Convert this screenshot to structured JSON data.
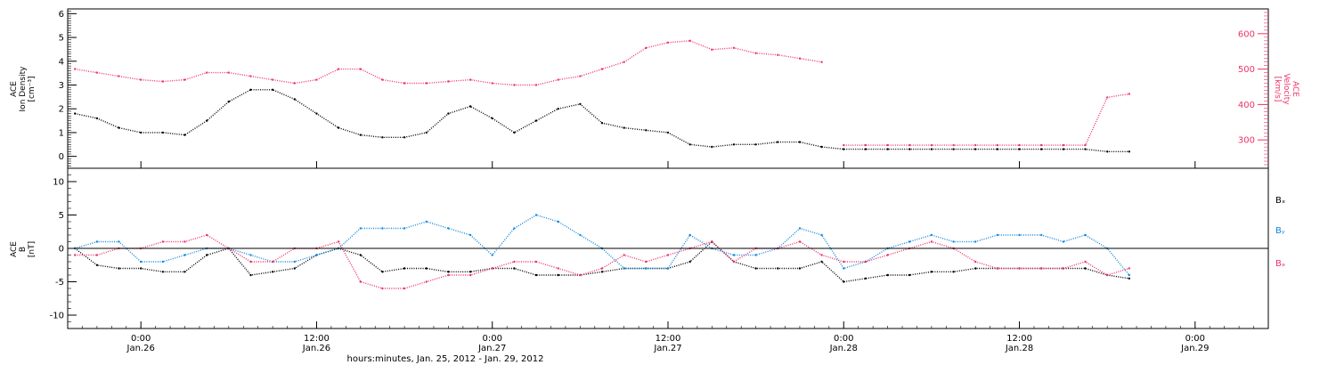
{
  "colors": {
    "density": "#000000",
    "velocity": "#ee3366",
    "bx": "#000000",
    "by": "#1188dd",
    "bz": "#ee3366"
  },
  "x_axis": {
    "label": "hours:minutes, Jan. 25, 2012 - Jan. 29, 2012",
    "range_hours": [
      -5,
      77
    ],
    "ticks": [
      {
        "hour": 0,
        "time": "0:00",
        "date": "Jan.26"
      },
      {
        "hour": 12,
        "time": "12:00",
        "date": "Jan.26"
      },
      {
        "hour": 24,
        "time": "0:00",
        "date": "Jan.27"
      },
      {
        "hour": 36,
        "time": "12:00",
        "date": "Jan.27"
      },
      {
        "hour": 48,
        "time": "0:00",
        "date": "Jan.28"
      },
      {
        "hour": 60,
        "time": "12:00",
        "date": "Jan.28"
      },
      {
        "hour": 72,
        "time": "0:00",
        "date": "Jan.29"
      }
    ]
  },
  "chart_data": [
    {
      "type": "scatter",
      "title": "",
      "ylabel_left": [
        "ACE",
        "Ion Density",
        "[cm⁻³]"
      ],
      "ylabel_right": [
        "ACE",
        "Velocity",
        "[km/s]"
      ],
      "ylim_left": [
        -0.5,
        6.2
      ],
      "ylim_right": [
        220,
        670
      ],
      "left_ticks": [
        0,
        1,
        2,
        3,
        4,
        5,
        6
      ],
      "right_ticks": [
        300,
        400,
        500,
        600
      ],
      "series": [
        {
          "key": "density",
          "axis": "left",
          "x": [
            -4.5,
            -3,
            -1.5,
            0,
            1.5,
            3,
            4.5,
            6,
            7.5,
            9,
            10.5,
            12,
            13.5,
            15,
            16.5,
            18,
            19.5,
            21,
            22.5,
            24,
            25.5,
            27,
            28.5,
            30,
            31.5,
            33,
            34.5,
            36,
            37.5,
            39,
            40.5,
            42,
            43.5,
            45,
            46.5,
            48,
            49.5,
            51,
            52.5,
            54,
            55.5,
            57,
            58.5,
            60,
            61.5,
            63,
            64.5,
            66,
            67.5
          ],
          "y": [
            1.8,
            1.6,
            1.2,
            1.0,
            1.0,
            0.9,
            1.5,
            2.3,
            2.8,
            2.8,
            2.4,
            1.8,
            1.2,
            0.9,
            0.8,
            0.8,
            1.0,
            1.8,
            2.1,
            1.6,
            1.0,
            1.5,
            2.0,
            2.2,
            1.4,
            1.2,
            1.1,
            1.0,
            0.5,
            0.4,
            0.5,
            0.5,
            0.6,
            0.6,
            0.4,
            0.3,
            0.3,
            0.3,
            0.3,
            0.3,
            0.3,
            0.3,
            0.3,
            0.3,
            0.3,
            0.3,
            0.3,
            0.2,
            0.2
          ]
        },
        {
          "key": "velocity",
          "axis": "right",
          "x": [
            -4.5,
            -3,
            -1.5,
            0,
            1.5,
            3,
            4.5,
            6,
            7.5,
            9,
            10.5,
            12,
            13.5,
            15,
            16.5,
            18,
            19.5,
            21,
            22.5,
            24,
            25.5,
            27,
            28.5,
            30,
            31.5,
            33,
            34.5,
            36,
            37.5,
            39,
            40.5,
            42,
            43.5,
            45,
            46.5
          ],
          "y": [
            500,
            490,
            480,
            470,
            465,
            470,
            490,
            490,
            480,
            470,
            460,
            470,
            500,
            500,
            470,
            460,
            460,
            465,
            470,
            460,
            455,
            455,
            470,
            480,
            500,
            520,
            560,
            575,
            580,
            555,
            560,
            545,
            540,
            530,
            520
          ]
        },
        {
          "key": "velocity_late",
          "axis": "right",
          "x": [
            48,
            49.5,
            51,
            52.5,
            54,
            55.5,
            57,
            58.5,
            60,
            61.5,
            63,
            64.5,
            66,
            67.5
          ],
          "y": [
            285,
            285,
            285,
            285,
            285,
            285,
            285,
            285,
            285,
            285,
            285,
            285,
            420,
            430
          ]
        }
      ]
    },
    {
      "type": "scatter",
      "title": "",
      "ylabel_left": [
        "ACE",
        "B",
        "[nT]"
      ],
      "ylim": [
        -12,
        12
      ],
      "left_ticks": [
        -10,
        -5,
        0,
        5,
        10
      ],
      "legend": [
        "Bₓ",
        "Bᵧ",
        "Bₔ"
      ],
      "legend_placement": "right",
      "series": [
        {
          "key": "bx",
          "label": "Bₓ",
          "x": [
            -4.5,
            -3,
            -1.5,
            0,
            1.5,
            3,
            4.5,
            6,
            7.5,
            9,
            10.5,
            12,
            13.5,
            15,
            16.5,
            18,
            19.5,
            21,
            22.5,
            24,
            25.5,
            27,
            28.5,
            30,
            31.5,
            33,
            34.5,
            36,
            37.5,
            39,
            40.5,
            42,
            43.5,
            45,
            46.5,
            48,
            49.5,
            51,
            52.5,
            54,
            55.5,
            57,
            58.5,
            60,
            61.5,
            63,
            64.5,
            66,
            67.5
          ],
          "y": [
            0,
            -2.5,
            -3,
            -3,
            -3.5,
            -3.5,
            -1,
            0,
            -4,
            -3.5,
            -3,
            -1,
            0,
            -1,
            -3.5,
            -3,
            -3,
            -3.5,
            -3.5,
            -3,
            -3,
            -4,
            -4,
            -4,
            -3.5,
            -3,
            -3,
            -3,
            -2,
            1,
            -2,
            -3,
            -3,
            -3,
            -2,
            -5,
            -4.5,
            -4,
            -4,
            -3.5,
            -3.5,
            -3,
            -3,
            -3,
            -3,
            -3,
            -3,
            -4,
            -4.5
          ]
        },
        {
          "key": "by",
          "label": "Bᵧ",
          "x": [
            -4.5,
            -3,
            -1.5,
            0,
            1.5,
            3,
            4.5,
            6,
            7.5,
            9,
            10.5,
            12,
            13.5,
            15,
            16.5,
            18,
            19.5,
            21,
            22.5,
            24,
            25.5,
            27,
            28.5,
            30,
            31.5,
            33,
            34.5,
            36,
            37.5,
            39,
            40.5,
            42,
            43.5,
            45,
            46.5,
            48,
            49.5,
            51,
            52.5,
            54,
            55.5,
            57,
            58.5,
            60,
            61.5,
            63,
            64.5,
            66,
            67.5
          ],
          "y": [
            0,
            1,
            1,
            -2,
            -2,
            -1,
            0,
            0,
            -1,
            -2,
            -2,
            -1,
            0,
            3,
            3,
            3,
            4,
            3,
            2,
            -1,
            3,
            5,
            4,
            2,
            0,
            -3,
            -3,
            -3,
            2,
            0,
            -1,
            -1,
            0,
            3,
            2,
            -3,
            -2,
            0,
            1,
            2,
            1,
            1,
            2,
            2,
            2,
            1,
            2,
            0,
            -4
          ]
        },
        {
          "key": "bz",
          "label": "Bₔ",
          "x": [
            -4.5,
            -3,
            -1.5,
            0,
            1.5,
            3,
            4.5,
            6,
            7.5,
            9,
            10.5,
            12,
            13.5,
            15,
            16.5,
            18,
            19.5,
            21,
            22.5,
            24,
            25.5,
            27,
            28.5,
            30,
            31.5,
            33,
            34.5,
            36,
            37.5,
            39,
            40.5,
            42,
            43.5,
            45,
            46.5,
            48,
            49.5,
            51,
            52.5,
            54,
            55.5,
            57,
            58.5,
            60,
            61.5,
            63,
            64.5,
            66,
            67.5
          ],
          "y": [
            -1,
            -1,
            0,
            0,
            1,
            1,
            2,
            0,
            -2,
            -2,
            0,
            0,
            1,
            -5,
            -6,
            -6,
            -5,
            -4,
            -4,
            -3,
            -2,
            -2,
            -3,
            -4,
            -3,
            -1,
            -2,
            -1,
            0,
            1,
            -2,
            0,
            0,
            1,
            -1,
            -2,
            -2,
            -1,
            0,
            1,
            0,
            -2,
            -3,
            -3,
            -3,
            -3,
            -2,
            -4,
            -3
          ]
        }
      ]
    }
  ]
}
